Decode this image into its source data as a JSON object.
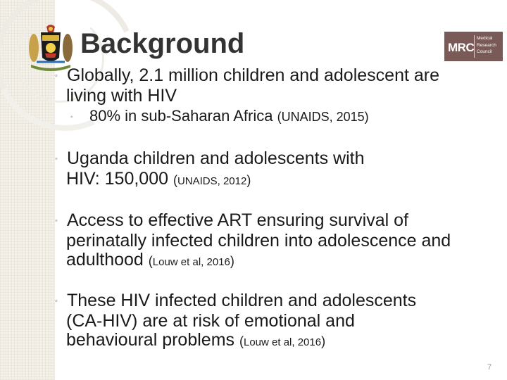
{
  "slide": {
    "title": "Background",
    "page_number": "7"
  },
  "logo": {
    "abbr": "MRC",
    "lines": [
      "Medical",
      "Research",
      "Council"
    ],
    "color": "#7a5a57"
  },
  "bullets": [
    {
      "lead": "Globally, 2.1 million children and adolescent are",
      "rest": "living with HIV"
    },
    {
      "lead": "80% in sub-Saharan Africa ",
      "cite": "(UNAIDS, 2015)"
    },
    {
      "lead": "Uganda children and adolescents with",
      "rest": "HIV: 150,000 ",
      "cite_open": "(",
      "cite": "UNAIDS, 2012",
      "cite_close": ")"
    },
    {
      "lead": "Access to effective ART ensuring survival of",
      "rest1": "perinatally infected children into adolescence and",
      "rest2": "adulthood ",
      "cite_open": "(",
      "cite": "Louw et al, 2016",
      "cite_close": ")"
    },
    {
      "lead": "These HIV infected children and adolescents",
      "rest1": "(CA-HIV)  are at risk of emotional and",
      "rest2": "behavioural problems ",
      "cite_open": "(",
      "cite": "Louw et al, 2016",
      "cite_close": ")"
    }
  ]
}
